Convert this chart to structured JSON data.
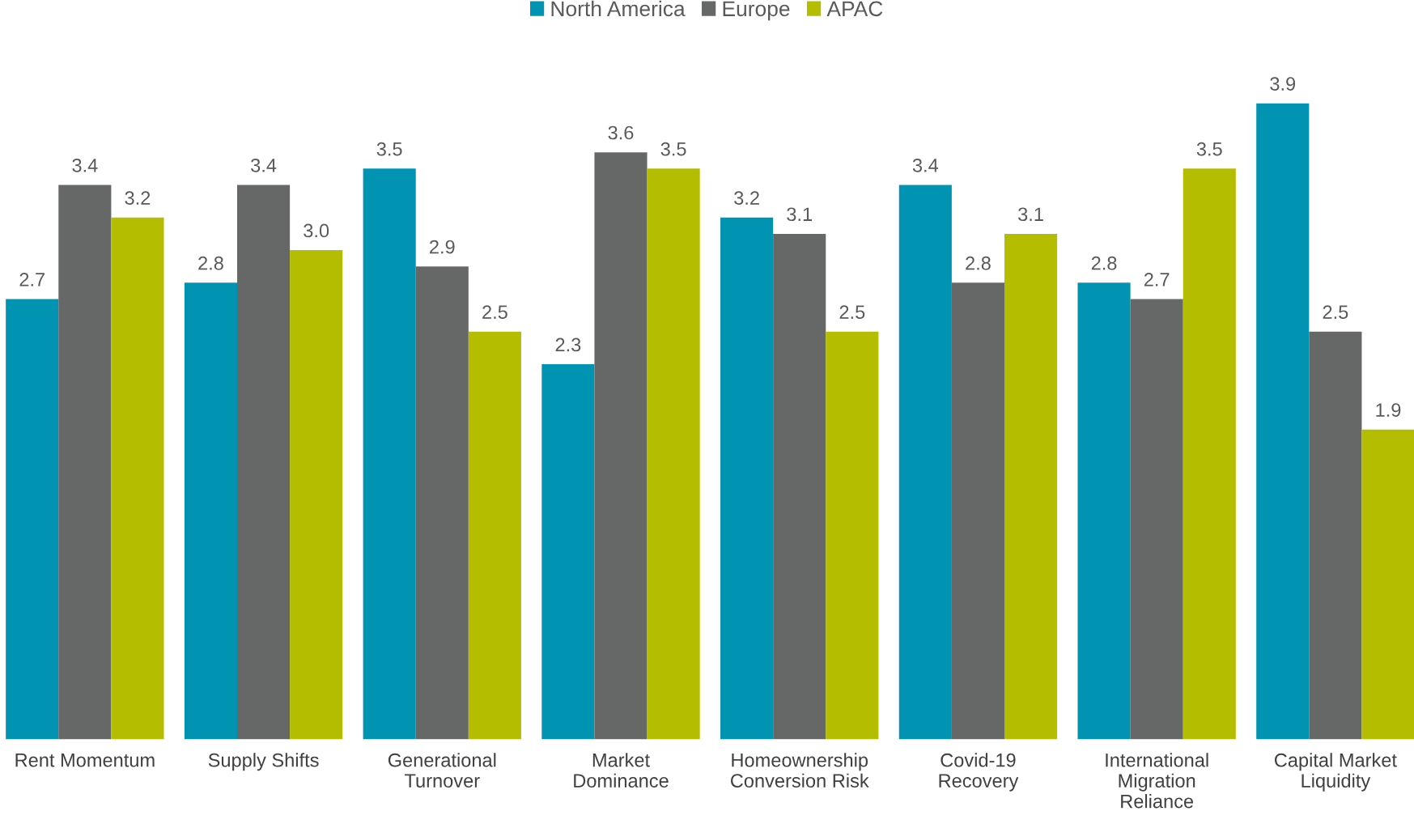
{
  "chart_data": {
    "type": "bar",
    "categories": [
      "Rent Momentum",
      "Supply Shifts",
      "Generational\nTurnover",
      "Market\nDominance",
      "Homeownership\nConversion Risk",
      "Covid-19\nRecovery",
      "International\nMigration\nReliance",
      "Capital Market\nLiquidity"
    ],
    "series": [
      {
        "name": "North America",
        "color": "#0093b2",
        "values": [
          2.7,
          2.8,
          3.5,
          2.3,
          3.2,
          3.4,
          2.8,
          3.9
        ],
        "value_labels": [
          "2.7",
          "2.8",
          "3.5",
          "2.3",
          "3.2",
          "3.4",
          "2.8",
          "3.9"
        ]
      },
      {
        "name": "Europe",
        "color": "#666767",
        "values": [
          3.4,
          3.4,
          2.9,
          3.6,
          3.1,
          2.8,
          2.7,
          2.5
        ],
        "value_labels": [
          "3.4",
          "3.4",
          "2.9",
          "3.6",
          "3.1",
          "2.8",
          "2.7",
          "2.5"
        ]
      },
      {
        "name": "APAC",
        "color": "#b5bd00",
        "values": [
          3.2,
          3.0,
          2.5,
          3.5,
          2.5,
          3.1,
          3.5,
          1.9
        ],
        "value_labels": [
          "3.2",
          "3.0",
          "2.5",
          "3.5",
          "2.5",
          "3.1",
          "3.5",
          "1.9"
        ]
      }
    ],
    "tick_labels": "x",
    "legend": "top",
    "grid": false
  }
}
